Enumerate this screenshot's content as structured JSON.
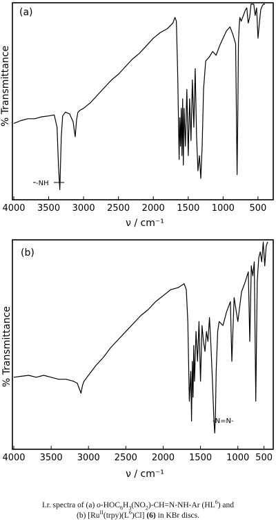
{
  "chart_data": [
    {
      "type": "line",
      "panel_label": "(a)",
      "xlabel": "ν / cm⁻¹",
      "ylabel": "% Transmittance",
      "xlim": [
        4000,
        400
      ],
      "x_reversed": true,
      "ticks": [
        4000,
        3500,
        3000,
        2500,
        2000,
        1500,
        1000,
        500
      ],
      "tick_labels": [
        "4000",
        "3500",
        "3000",
        "2500",
        "2000",
        "1500",
        "1000",
        "500"
      ],
      "ylim": [
        0,
        100
      ],
      "annotations": [
        {
          "text": "-NH",
          "x": 3340
        }
      ],
      "x": [
        4000,
        3900,
        3800,
        3700,
        3600,
        3500,
        3420,
        3380,
        3360,
        3340,
        3320,
        3300,
        3260,
        3200,
        3150,
        3120,
        3100,
        3080,
        3050,
        3000,
        2900,
        2800,
        2700,
        2600,
        2500,
        2400,
        2300,
        2200,
        2100,
        2000,
        1900,
        1800,
        1720,
        1690,
        1670,
        1650,
        1630,
        1620,
        1610,
        1600,
        1590,
        1580,
        1570,
        1560,
        1540,
        1520,
        1500,
        1480,
        1460,
        1440,
        1420,
        1400,
        1380,
        1360,
        1340,
        1320,
        1300,
        1280,
        1250,
        1200,
        1150,
        1100,
        1050,
        1000,
        950,
        900,
        860,
        820,
        800,
        790,
        780,
        770,
        760,
        740,
        700,
        680,
        660,
        640,
        620,
        600,
        580,
        560,
        540,
        520,
        500,
        480,
        460,
        440,
        420,
        400
      ],
      "y": [
        37,
        38.5,
        39.5,
        39.5,
        40.5,
        41,
        41.5,
        35,
        15,
        2,
        30,
        41,
        43,
        42,
        38,
        30,
        39,
        43,
        44,
        45,
        48,
        52,
        56,
        60,
        63,
        67,
        71,
        74,
        78,
        82,
        85,
        87,
        90,
        93,
        91,
        62,
        18,
        40,
        25,
        45,
        20,
        50,
        15,
        45,
        25,
        55,
        20,
        50,
        28,
        60,
        35,
        66,
        30,
        12,
        20,
        8,
        25,
        55,
        70,
        72,
        75,
        73,
        78,
        82,
        86,
        88,
        84,
        79,
        10,
        40,
        80,
        88,
        93,
        91,
        95,
        97,
        98,
        90,
        93,
        100,
        100,
        100,
        94,
        98,
        82,
        90,
        97,
        99,
        100,
        100
      ]
    },
    {
      "type": "line",
      "panel_label": "(b)",
      "xlabel": "ν / cm⁻¹",
      "ylabel": "% Transmittance",
      "xlim": [
        4000,
        600
      ],
      "x_reversed": true,
      "ticks": [
        4000,
        3500,
        3000,
        2500,
        2000,
        1500,
        1000
      ],
      "tick_labels": [
        "4000",
        "3500",
        "3000",
        "2500",
        "2000",
        "1500",
        "1000"
      ],
      "extra_tick_labels": [
        {
          "x": 650,
          "text": "500"
        }
      ],
      "ylim": [
        0,
        100
      ],
      "annotations": [
        {
          "text": "-N=N-",
          "x": 1310
        }
      ],
      "x": [
        4000,
        3900,
        3800,
        3700,
        3600,
        3500,
        3400,
        3300,
        3200,
        3150,
        3100,
        3080,
        3060,
        3040,
        3000,
        2900,
        2800,
        2700,
        2600,
        2500,
        2400,
        2300,
        2200,
        2100,
        2000,
        1900,
        1800,
        1720,
        1690,
        1670,
        1650,
        1630,
        1620,
        1610,
        1600,
        1590,
        1580,
        1560,
        1540,
        1520,
        1500,
        1480,
        1460,
        1440,
        1420,
        1400,
        1380,
        1360,
        1340,
        1320,
        1310,
        1300,
        1290,
        1270,
        1250,
        1200,
        1150,
        1100,
        1080,
        1050,
        1000,
        950,
        900,
        860,
        840,
        820,
        800,
        780,
        760,
        740,
        720,
        700,
        680,
        660,
        640,
        620,
        600
      ],
      "y": [
        32,
        32.5,
        33,
        32,
        33,
        32,
        31,
        31,
        30,
        29,
        24,
        28,
        30,
        31,
        33,
        38,
        42,
        47,
        51,
        55,
        59,
        63,
        66,
        70,
        73,
        76,
        77,
        79,
        76,
        60,
        20,
        35,
        10,
        40,
        22,
        48,
        30,
        55,
        40,
        60,
        30,
        58,
        50,
        45,
        55,
        50,
        62,
        48,
        30,
        10,
        4,
        12,
        35,
        55,
        60,
        58,
        65,
        70,
        40,
        72,
        60,
        75,
        80,
        85,
        50,
        88,
        83,
        90,
        20,
        80,
        92,
        95,
        90,
        100,
        88,
        98,
        100
      ]
    }
  ],
  "caption": {
    "line1": {
      "pre": "I.r. spectra of  (a) ",
      "formula_a": "o",
      "formula_b": "-HOC",
      "s1": "6",
      "formula_c": "H",
      "s2": "3",
      "formula_d": "(NO",
      "s3": "2",
      "formula_e": ")-CH=N-NH-Ar (HL",
      "sup1": "6",
      "post": ") and"
    },
    "line2": {
      "pre": "(b) [Ru",
      "sup1": "II",
      "mid1": "(trpy)(L",
      "sup2": "6",
      "mid2": ")Cl] ",
      "bold": "(6)",
      "post": " in KBr discs."
    }
  }
}
